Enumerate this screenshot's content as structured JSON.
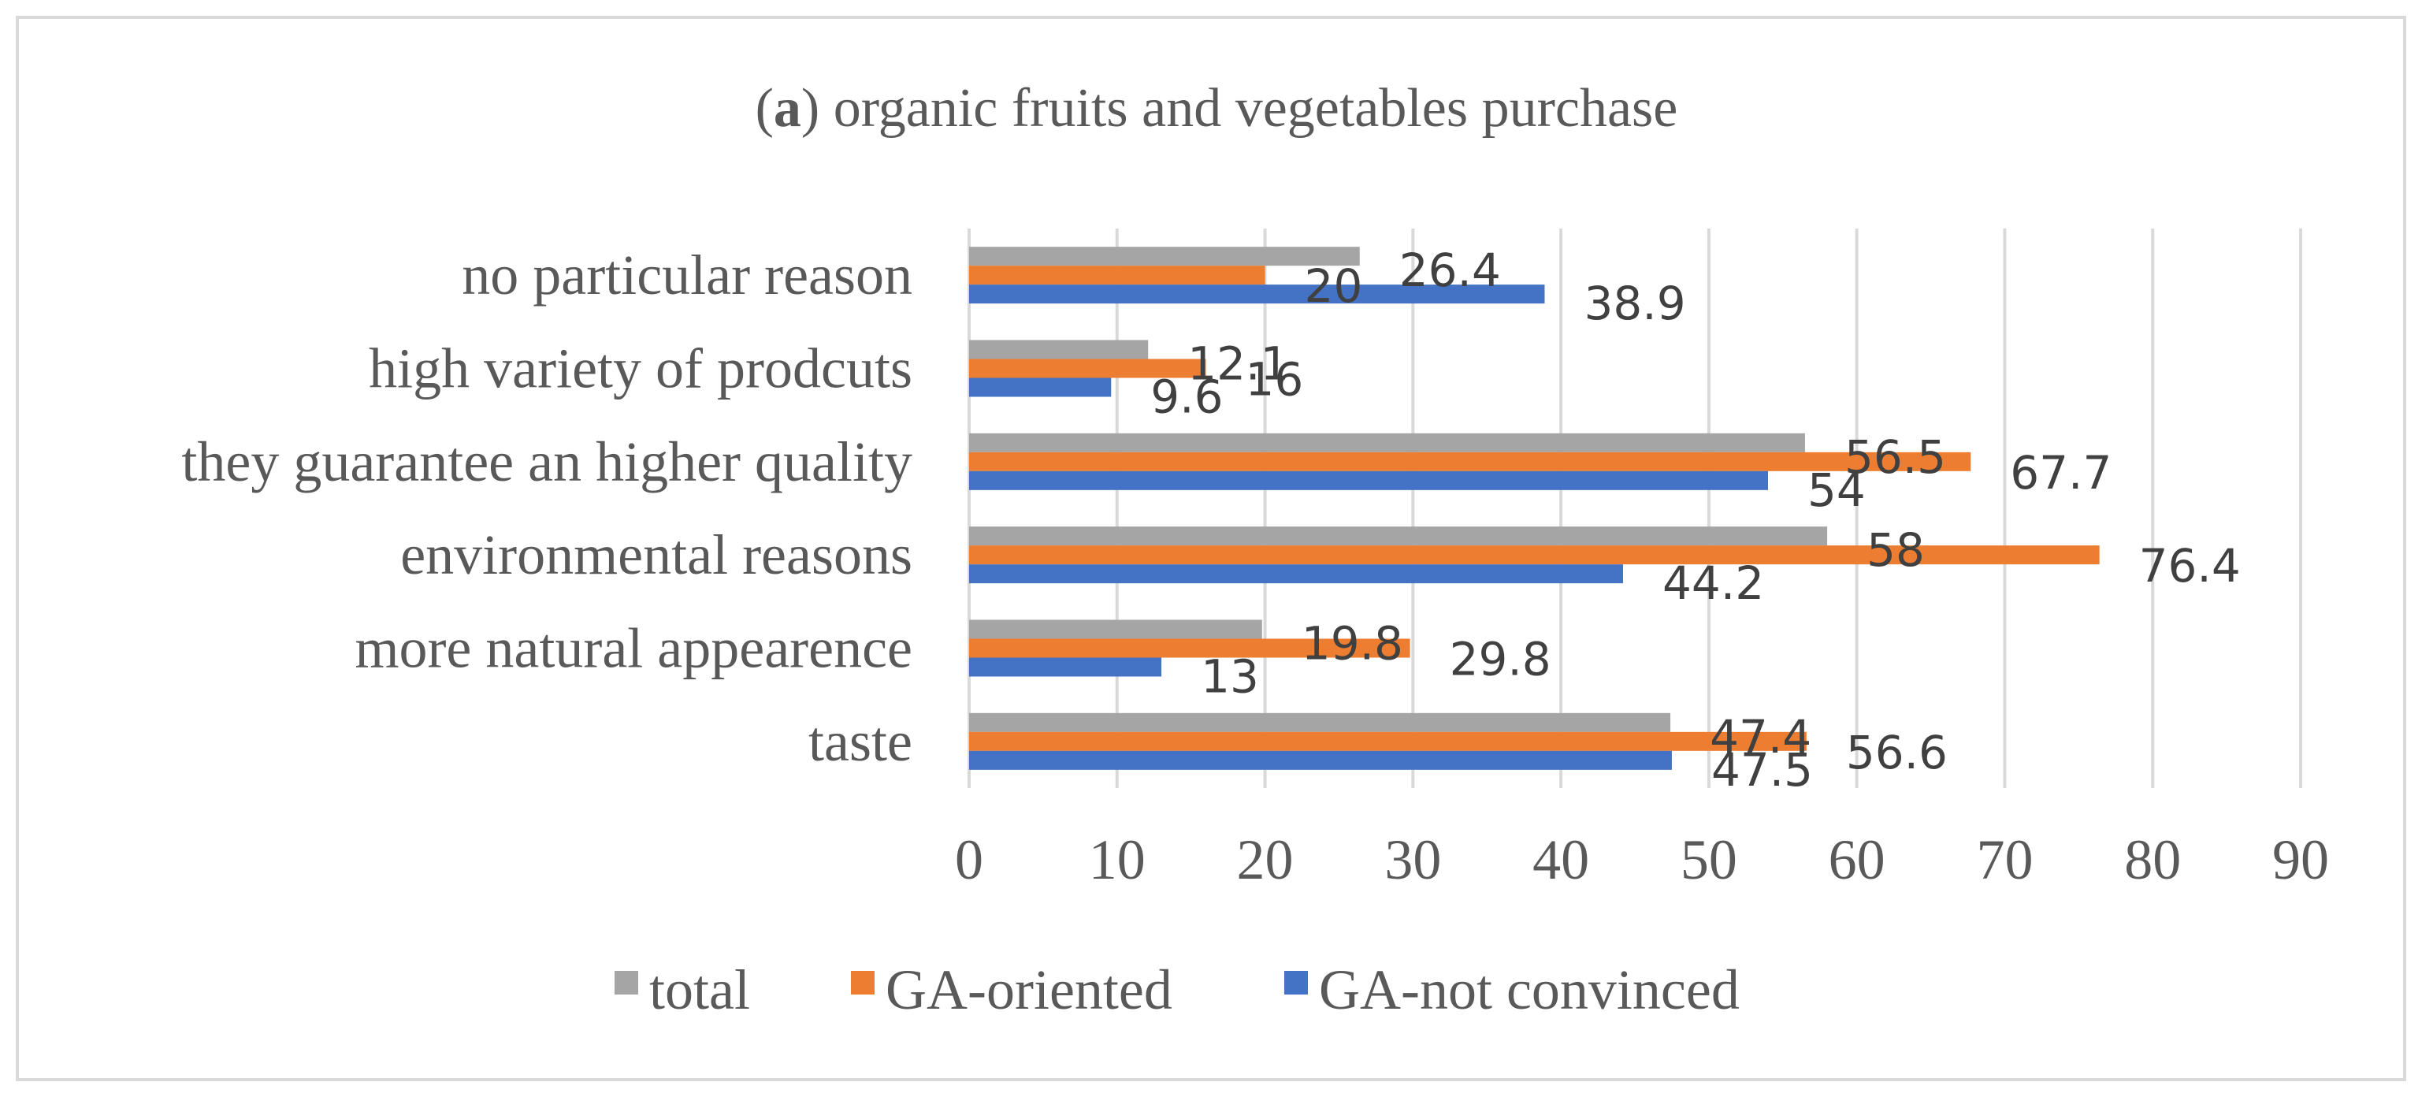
{
  "chart_data": {
    "type": "bar",
    "orientation": "horizontal",
    "title_prefix": "(",
    "title_bold": "a",
    "title_rest": ") organic fruits and vegetables purchase",
    "categories": [
      "no particular reason",
      "high variety of prodcuts",
      "they guarantee an higher quality",
      "environmental reasons",
      "more natural appearence",
      "taste"
    ],
    "series": [
      {
        "name": "total",
        "color": "#a5a5a5",
        "values": [
          26.4,
          12.1,
          56.5,
          58,
          19.8,
          47.4
        ],
        "labels": [
          "26.4",
          "12.1",
          "56.5",
          "58",
          "19.8",
          "47.4"
        ]
      },
      {
        "name": "GA-oriented",
        "color": "#ed7d31",
        "values": [
          20,
          16,
          67.7,
          76.4,
          29.8,
          56.6
        ],
        "labels": [
          "20",
          "16",
          "67.7",
          "76.4",
          "29.8",
          "56.6"
        ]
      },
      {
        "name": "GA-not convinced",
        "color": "#4472c4",
        "values": [
          38.9,
          9.6,
          54,
          44.2,
          13,
          47.5
        ],
        "labels": [
          "38.9",
          "9.6",
          "54",
          "44.2",
          "13",
          "47.5"
        ]
      }
    ],
    "xlim": [
      0,
      90
    ],
    "xticks": [
      "0",
      "10",
      "20",
      "30",
      "40",
      "50",
      "60",
      "70",
      "80",
      "90"
    ],
    "grid": true,
    "legend_position": "bottom"
  }
}
